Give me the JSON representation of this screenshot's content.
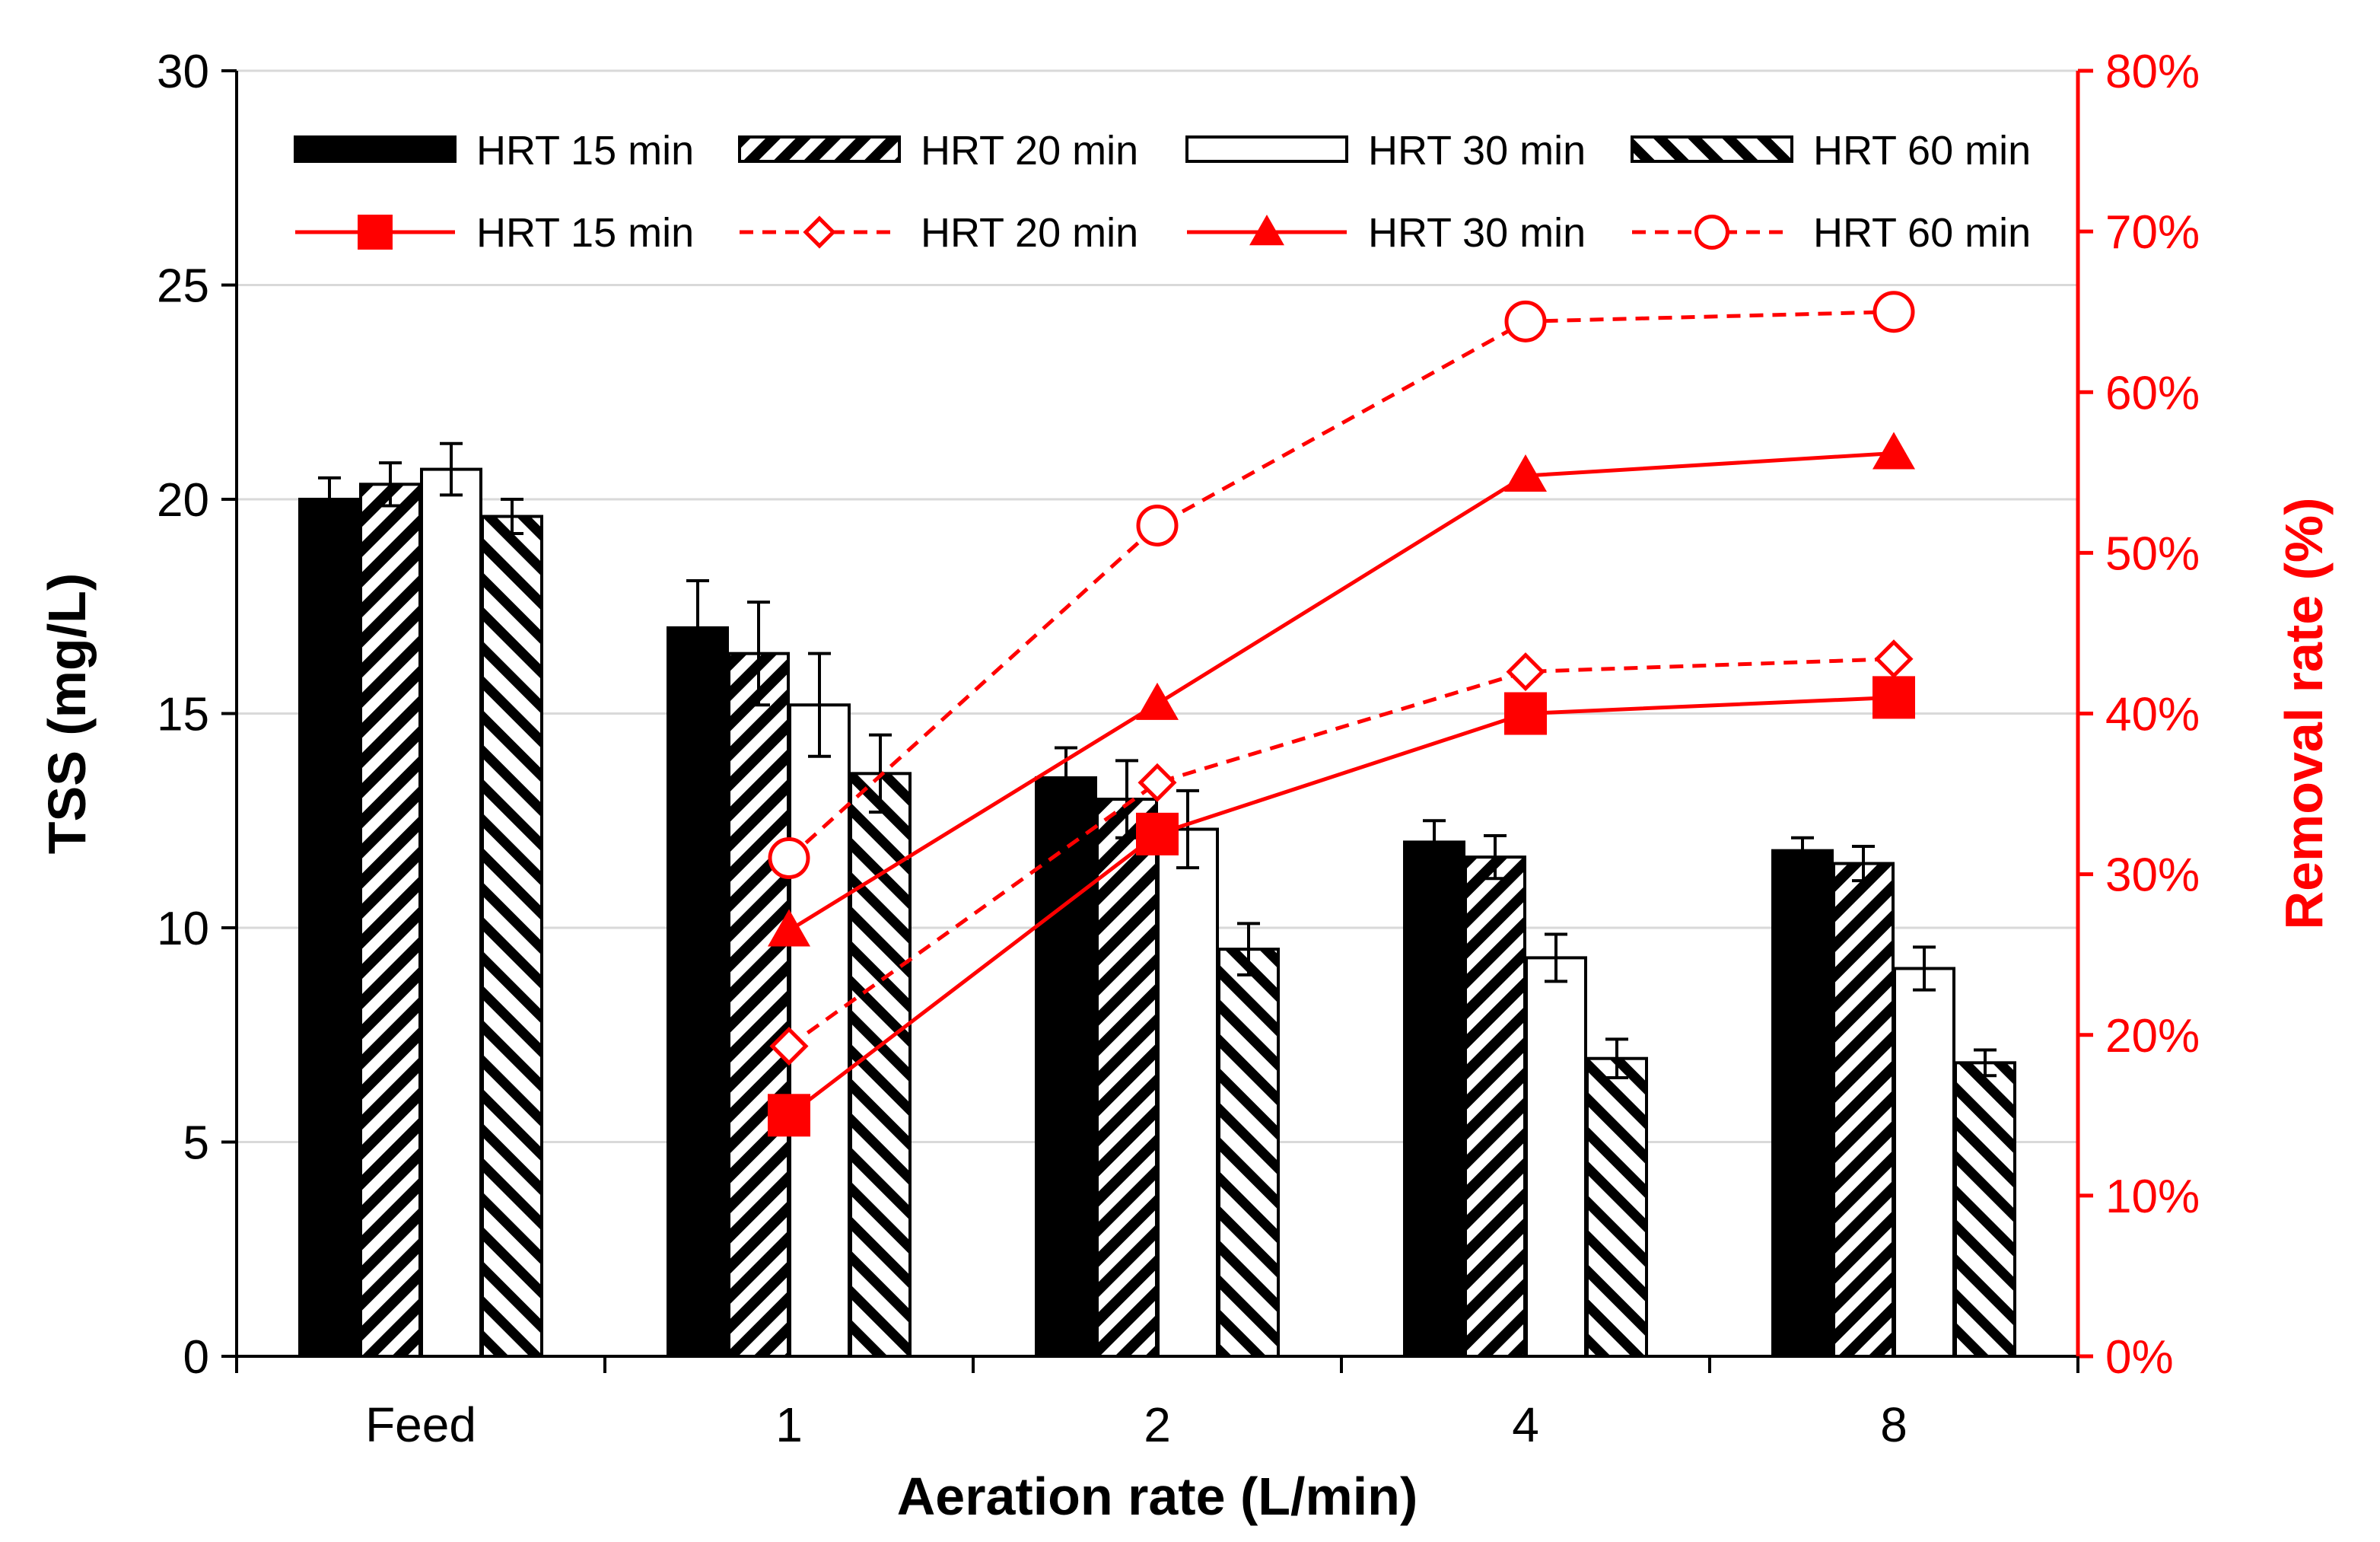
{
  "chart_data": {
    "type": "bar",
    "categories": [
      "Feed",
      "1",
      "2",
      "4",
      "8"
    ],
    "xlabel": "Aeration rate (L/min)",
    "ylabel": "TSS (mg/L)",
    "y2label": "Removal rate (%)",
    "ylim": [
      0,
      30
    ],
    "y2lim": [
      0,
      80
    ],
    "yticks": [
      "0",
      "5",
      "10",
      "15",
      "20",
      "25",
      "30"
    ],
    "y2ticks": [
      "0%",
      "10%",
      "20%",
      "30%",
      "40%",
      "50%",
      "60%",
      "70%",
      "80%"
    ],
    "grid": true,
    "legend_position": "top",
    "bar_series": [
      {
        "name": "HRT 15 min",
        "fill": "solid",
        "values": [
          20.0,
          17.0,
          13.5,
          12.0,
          11.8
        ],
        "errors": [
          0.5,
          1.1,
          0.7,
          0.5,
          0.3
        ]
      },
      {
        "name": "HRT 20 min",
        "fill": "hatch-back",
        "values": [
          20.35,
          16.4,
          13.0,
          11.65,
          11.5
        ],
        "errors": [
          0.5,
          1.2,
          0.9,
          0.5,
          0.4
        ]
      },
      {
        "name": "HRT 30 min",
        "fill": "open",
        "values": [
          20.7,
          15.2,
          12.3,
          9.3,
          9.05
        ],
        "errors": [
          0.6,
          1.2,
          0.9,
          0.55,
          0.5
        ]
      },
      {
        "name": "HRT 60 min",
        "fill": "hatch-fwd",
        "values": [
          19.6,
          13.6,
          9.5,
          6.95,
          6.85
        ],
        "errors": [
          0.4,
          0.9,
          0.6,
          0.45,
          0.3
        ]
      }
    ],
    "line_series": [
      {
        "name": "HRT 15 min",
        "marker": "square",
        "dashed": false,
        "x": [
          "1",
          "2",
          "4",
          "8"
        ],
        "values": [
          15,
          32.5,
          40,
          41
        ]
      },
      {
        "name": "HRT 20 min",
        "marker": "diamond",
        "dashed": true,
        "x": [
          "1",
          "2",
          "4",
          "8"
        ],
        "values": [
          19.3,
          35.7,
          42.6,
          43.4
        ]
      },
      {
        "name": "HRT 30 min",
        "marker": "triangle",
        "dashed": false,
        "x": [
          "1",
          "2",
          "4",
          "8"
        ],
        "values": [
          26.5,
          40.6,
          54.8,
          56.2
        ]
      },
      {
        "name": "HRT 60 min",
        "marker": "circle",
        "dashed": true,
        "x": [
          "1",
          "2",
          "4",
          "8"
        ],
        "values": [
          31,
          51.7,
          64.4,
          65
        ]
      }
    ],
    "colors": {
      "bars": "#000000",
      "lines": "#ff0000",
      "grid": "#d9d9d9"
    }
  }
}
